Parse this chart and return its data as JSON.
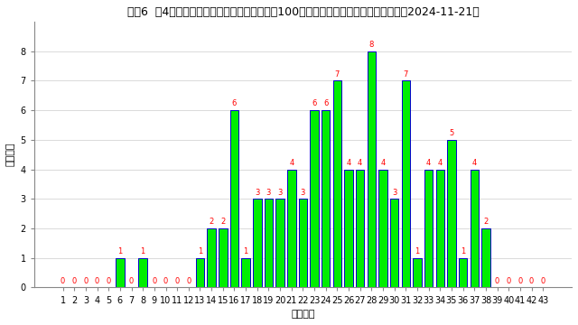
{
  "title": "ロト6  第4数字のキャリーオーバー直後の直近100回の出現数字と回数（最終抽選日：2024-11-21）",
  "xlabel": "出現数字",
  "ylabel": "出現回数",
  "categories": [
    1,
    2,
    3,
    4,
    5,
    6,
    7,
    8,
    9,
    10,
    11,
    12,
    13,
    14,
    15,
    16,
    17,
    18,
    19,
    20,
    21,
    22,
    23,
    24,
    25,
    26,
    27,
    28,
    29,
    30,
    31,
    32,
    33,
    34,
    35,
    36,
    37,
    38,
    39,
    40,
    41,
    42,
    43
  ],
  "values": [
    0,
    0,
    0,
    0,
    0,
    1,
    0,
    1,
    0,
    0,
    0,
    0,
    1,
    2,
    2,
    6,
    1,
    3,
    3,
    3,
    4,
    3,
    6,
    6,
    7,
    4,
    4,
    8,
    4,
    3,
    7,
    1,
    4,
    4,
    5,
    1,
    4,
    2,
    0,
    0,
    0,
    0,
    0
  ],
  "bar_color_main": "#00ee00",
  "bar_color_edge": "#0000cc",
  "label_color": "#ff0000",
  "background_color": "#ffffff",
  "title_fontsize": 9,
  "axis_label_fontsize": 8,
  "tick_fontsize": 7,
  "value_label_fontsize": 6,
  "ylim": [
    0,
    9
  ],
  "yticks": [
    0,
    1,
    2,
    3,
    4,
    5,
    6,
    7,
    8
  ]
}
